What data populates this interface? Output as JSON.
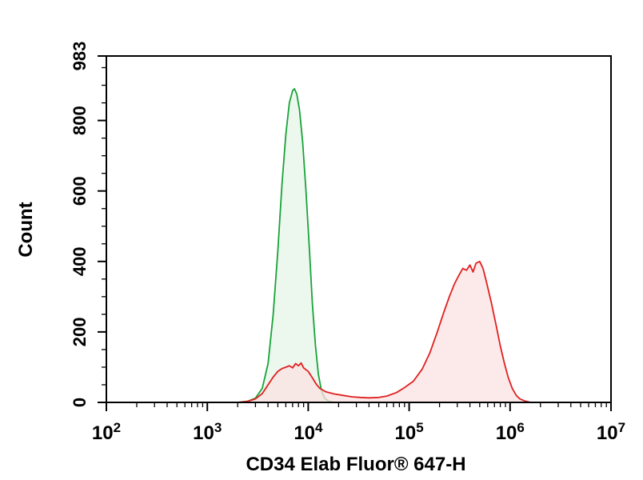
{
  "chart_data": {
    "type": "area",
    "title": "",
    "xlabel": "CD34 Elab Fluor® 647-H",
    "ylabel": "Count",
    "x_scale": "log",
    "xlim": [
      100,
      10000000
    ],
    "ylim": [
      0,
      983
    ],
    "x_ticks": [
      {
        "base": "10",
        "exp": "2"
      },
      {
        "base": "10",
        "exp": "3"
      },
      {
        "base": "10",
        "exp": "4"
      },
      {
        "base": "10",
        "exp": "5"
      },
      {
        "base": "10",
        "exp": "6"
      },
      {
        "base": "10",
        "exp": "7"
      }
    ],
    "y_ticks": [
      "0",
      "200",
      "400",
      "600",
      "800",
      "983"
    ],
    "grid": false,
    "series": [
      {
        "color": "#1aa33a",
        "fill": "#e6f4e8",
        "points": [
          [
            2000,
            0
          ],
          [
            2500,
            3
          ],
          [
            3000,
            12
          ],
          [
            3500,
            40
          ],
          [
            4000,
            110
          ],
          [
            4500,
            250
          ],
          [
            5000,
            430
          ],
          [
            5500,
            620
          ],
          [
            6000,
            760
          ],
          [
            6500,
            850
          ],
          [
            7000,
            885
          ],
          [
            7300,
            890
          ],
          [
            7700,
            875
          ],
          [
            8200,
            830
          ],
          [
            8800,
            740
          ],
          [
            9500,
            600
          ],
          [
            10300,
            430
          ],
          [
            11000,
            280
          ],
          [
            11800,
            160
          ],
          [
            12600,
            80
          ],
          [
            13500,
            35
          ],
          [
            14500,
            12
          ],
          [
            16000,
            3
          ],
          [
            18000,
            0
          ]
        ]
      },
      {
        "color": "#e02020",
        "fill": "#fbe1e1",
        "points": [
          [
            2000,
            0
          ],
          [
            2500,
            3
          ],
          [
            3000,
            10
          ],
          [
            3500,
            25
          ],
          [
            4000,
            50
          ],
          [
            4500,
            72
          ],
          [
            5000,
            88
          ],
          [
            5500,
            96
          ],
          [
            6000,
            100
          ],
          [
            6500,
            104
          ],
          [
            7000,
            98
          ],
          [
            7500,
            110
          ],
          [
            8000,
            104
          ],
          [
            8500,
            112
          ],
          [
            9000,
            98
          ],
          [
            10000,
            88
          ],
          [
            11000,
            70
          ],
          [
            12000,
            52
          ],
          [
            13000,
            40
          ],
          [
            15000,
            30
          ],
          [
            18000,
            24
          ],
          [
            22000,
            20
          ],
          [
            27000,
            16
          ],
          [
            33000,
            14
          ],
          [
            40000,
            13
          ],
          [
            50000,
            14
          ],
          [
            60000,
            18
          ],
          [
            75000,
            28
          ],
          [
            90000,
            42
          ],
          [
            110000,
            60
          ],
          [
            135000,
            95
          ],
          [
            160000,
            140
          ],
          [
            190000,
            200
          ],
          [
            220000,
            255
          ],
          [
            250000,
            300
          ],
          [
            280000,
            335
          ],
          [
            310000,
            360
          ],
          [
            340000,
            380
          ],
          [
            370000,
            375
          ],
          [
            400000,
            390
          ],
          [
            430000,
            370
          ],
          [
            460000,
            395
          ],
          [
            500000,
            400
          ],
          [
            540000,
            380
          ],
          [
            580000,
            345
          ],
          [
            650000,
            285
          ],
          [
            720000,
            225
          ],
          [
            800000,
            160
          ],
          [
            880000,
            110
          ],
          [
            960000,
            70
          ],
          [
            1050000,
            40
          ],
          [
            1150000,
            20
          ],
          [
            1250000,
            10
          ],
          [
            1400000,
            4
          ],
          [
            1600000,
            0
          ]
        ]
      }
    ]
  }
}
